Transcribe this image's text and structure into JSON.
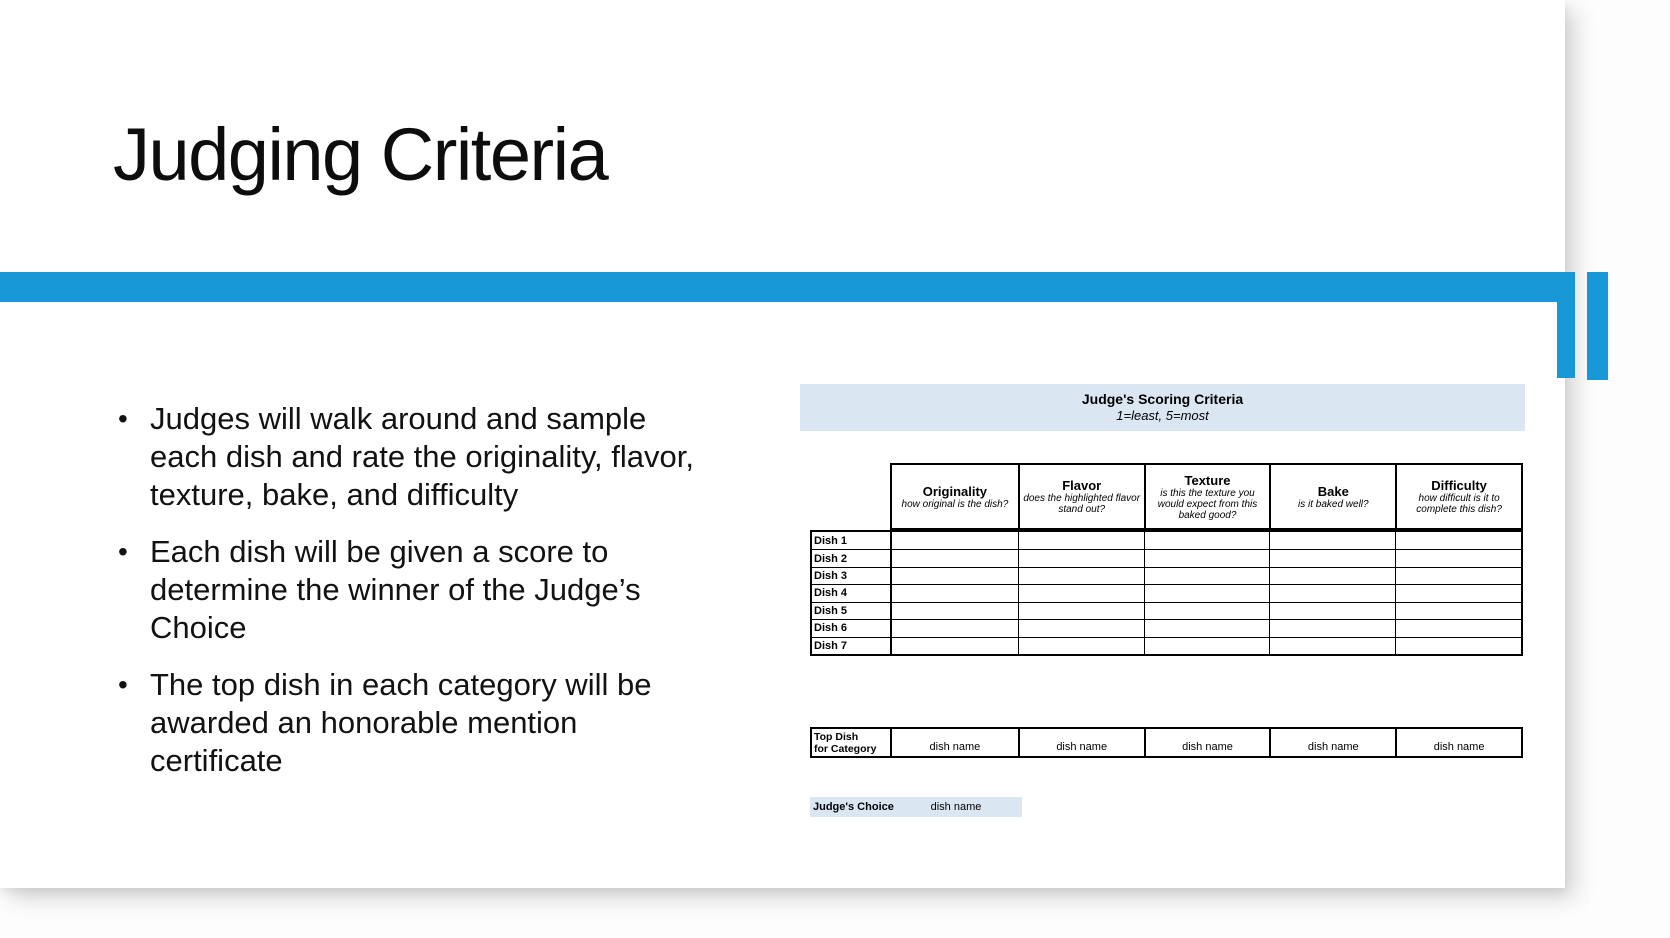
{
  "slide": {
    "title": "Judging Criteria",
    "bullets": [
      "Judges will walk around and sample each dish and rate the originality, flavor, texture, bake, and difficulty",
      "Each dish will be given a score to determine the winner of the Judge’s Choice",
      "The top dish in each category will be awarded an honorable mention certificate"
    ]
  },
  "scoring": {
    "band_title": "Judge's Scoring Criteria",
    "band_subtitle": "1=least, 5=most",
    "columns": [
      {
        "name": "Originality",
        "desc": "how original is the dish?"
      },
      {
        "name": "Flavor",
        "desc": "does the highlighted flavor stand out?"
      },
      {
        "name": "Texture",
        "desc": "is this the texture you would expect from this baked good?"
      },
      {
        "name": "Bake",
        "desc": "is it baked well?"
      },
      {
        "name": "Difficulty",
        "desc": "how difficult is it to complete this dish?"
      }
    ],
    "rows": [
      {
        "label": "Dish 1"
      },
      {
        "label": "Dish 2"
      },
      {
        "label": "Dish 3"
      },
      {
        "label": "Dish 4"
      },
      {
        "label": "Dish 5"
      },
      {
        "label": "Dish 6"
      },
      {
        "label": "Dish 7"
      }
    ],
    "top_dish": {
      "label_line1": "Top Dish",
      "label_line2": "for Category",
      "values": [
        "dish name",
        "dish name",
        "dish name",
        "dish name",
        "dish name"
      ]
    },
    "judges_choice": {
      "label": "Judge's Choice",
      "value": "dish name"
    }
  },
  "colors": {
    "accent_blue": "#1898d6",
    "table_band_blue": "#dbe6f3"
  }
}
